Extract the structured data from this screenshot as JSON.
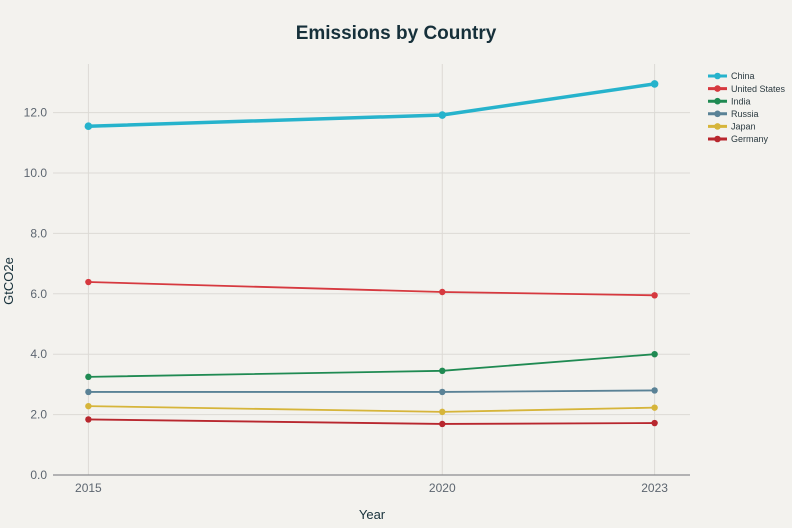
{
  "chart_data": {
    "type": "line",
    "title": "Emissions by Country",
    "xlabel": "Year",
    "ylabel": "GtCO2e",
    "x": [
      2015,
      2020,
      2023
    ],
    "x_ticks": [
      "2015",
      "2020",
      "2023"
    ],
    "xlim": [
      2014.5,
      2023.5
    ],
    "ylim": [
      0,
      13.6
    ],
    "y_ticks": [
      0,
      2,
      4,
      6,
      8,
      10,
      12
    ],
    "y_tick_labels": [
      "0.0",
      "2.0",
      "4.0",
      "6.0",
      "8.0",
      "10.0",
      "12.0"
    ],
    "grid": true,
    "legend_position": "top-right",
    "series": [
      {
        "name": "China",
        "color": "#26b3cc",
        "values": [
          11.55,
          11.92,
          12.95
        ],
        "emphasis": true
      },
      {
        "name": "United States",
        "color": "#d6393f",
        "values": [
          6.39,
          6.06,
          5.95
        ]
      },
      {
        "name": "India",
        "color": "#1f8a52",
        "values": [
          3.25,
          3.45,
          4.0
        ]
      },
      {
        "name": "Russia",
        "color": "#5a8296",
        "values": [
          2.75,
          2.75,
          2.8
        ]
      },
      {
        "name": "Japan",
        "color": "#d6b53a",
        "values": [
          2.28,
          2.09,
          2.23
        ]
      },
      {
        "name": "Germany",
        "color": "#b8272e",
        "values": [
          1.84,
          1.69,
          1.72
        ]
      }
    ]
  }
}
